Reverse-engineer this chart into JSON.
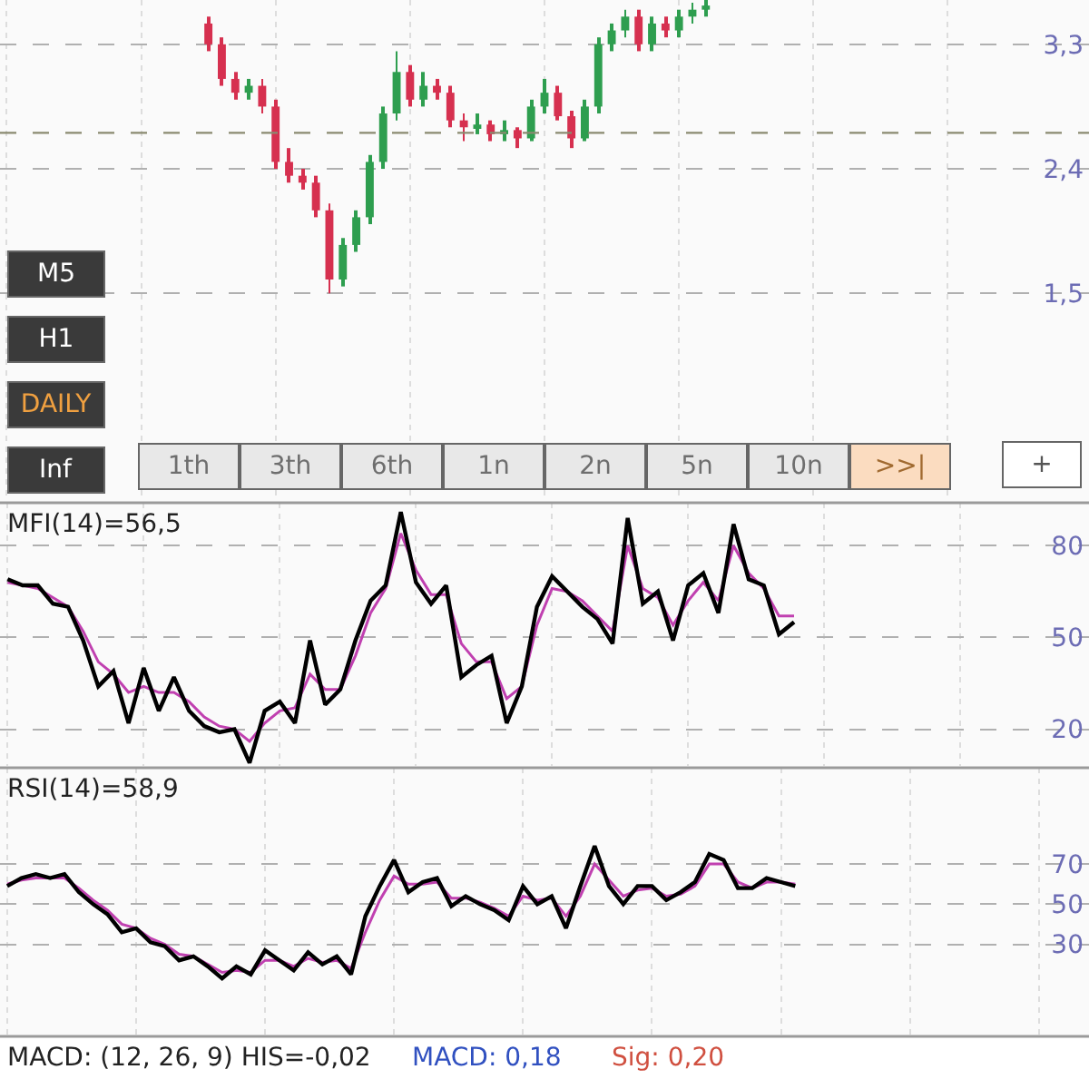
{
  "chart_data": [
    {
      "type": "candlestick",
      "categories": [
        null,
        null,
        null,
        null,
        null,
        null,
        null,
        null,
        null,
        null,
        null,
        null,
        null,
        null,
        null,
        null,
        null,
        null,
        null,
        null,
        null,
        null,
        null,
        null,
        null,
        null,
        null,
        null,
        null,
        null,
        null,
        null,
        null,
        null,
        null,
        null,
        null,
        null,
        null,
        null,
        null,
        null,
        null,
        null,
        null,
        null,
        null,
        null,
        null,
        null,
        null,
        null,
        null,
        null,
        null,
        null,
        null,
        null,
        null,
        null,
        null,
        null,
        null,
        null,
        null,
        null,
        null,
        null,
        null,
        null,
        null,
        null,
        null,
        null,
        null,
        null,
        null,
        null,
        null,
        null,
        null
      ],
      "ohlc": [
        null,
        null,
        null,
        null,
        null,
        null,
        null,
        null,
        null,
        null,
        null,
        null,
        null,
        null,
        null,
        [
          3.45,
          3.5,
          3.25,
          3.3
        ],
        [
          3.3,
          3.35,
          3.0,
          3.05
        ],
        [
          3.05,
          3.1,
          2.9,
          2.95
        ],
        [
          2.95,
          3.05,
          2.9,
          3.0
        ],
        [
          3.0,
          3.05,
          2.8,
          2.85
        ],
        [
          2.85,
          2.9,
          2.4,
          2.45
        ],
        [
          2.45,
          2.55,
          2.3,
          2.35
        ],
        [
          2.35,
          2.4,
          2.25,
          2.3
        ],
        [
          2.3,
          2.35,
          2.05,
          2.1
        ],
        [
          2.1,
          2.15,
          1.5,
          1.6
        ],
        [
          1.6,
          1.9,
          1.55,
          1.85
        ],
        [
          1.85,
          2.1,
          1.8,
          2.05
        ],
        [
          2.05,
          2.5,
          2.0,
          2.45
        ],
        [
          2.45,
          2.85,
          2.4,
          2.8
        ],
        [
          2.8,
          3.25,
          2.75,
          3.1
        ],
        [
          3.1,
          3.15,
          2.85,
          2.9
        ],
        [
          2.9,
          3.1,
          2.85,
          3.0
        ],
        [
          3.0,
          3.05,
          2.9,
          2.95
        ],
        [
          2.95,
          3.0,
          2.7,
          2.75
        ],
        [
          2.75,
          2.8,
          2.6,
          2.7
        ],
        [
          2.7,
          2.8,
          2.65,
          2.72
        ],
        [
          2.72,
          2.75,
          2.6,
          2.65
        ],
        [
          2.65,
          2.75,
          2.6,
          2.68
        ],
        [
          2.68,
          2.7,
          2.55,
          2.62
        ],
        [
          2.62,
          2.9,
          2.6,
          2.85
        ],
        [
          2.85,
          3.05,
          2.8,
          2.95
        ],
        [
          2.95,
          3.0,
          2.75,
          2.78
        ],
        [
          2.78,
          2.82,
          2.55,
          2.62
        ],
        [
          2.62,
          2.9,
          2.6,
          2.85
        ],
        [
          2.85,
          3.35,
          2.8,
          3.3
        ],
        [
          3.3,
          3.45,
          3.25,
          3.4
        ],
        [
          3.4,
          3.55,
          3.35,
          3.5
        ],
        [
          3.5,
          3.55,
          3.25,
          3.3
        ],
        [
          3.3,
          3.5,
          3.25,
          3.45
        ],
        [
          3.45,
          3.5,
          3.35,
          3.4
        ],
        [
          3.4,
          3.55,
          3.35,
          3.5
        ],
        [
          3.5,
          3.6,
          3.45,
          3.55
        ],
        [
          3.55,
          3.62,
          3.5,
          3.58
        ],
        null,
        null,
        null,
        null,
        null,
        null,
        null,
        null,
        null,
        null,
        null,
        null,
        null,
        null,
        null,
        null,
        null,
        null,
        null,
        null,
        null,
        null,
        null,
        null,
        null,
        null,
        null,
        null
      ],
      "ylim": [
        0,
        3.62
      ],
      "yticks": [
        {
          "value": 1.5,
          "label": "1,5"
        },
        {
          "value": 2.4,
          "label": "2,4"
        },
        {
          "value": 3.3,
          "label": "3,3"
        }
      ],
      "ref_lines": [
        {
          "axis": "y",
          "value": 2.66,
          "color": "#8a8a70",
          "line_style": "dashed"
        }
      ],
      "grid": true,
      "annotations": [
        "M5",
        "H1",
        "DAILY",
        "Inf",
        "1th",
        "3th",
        "6th",
        "1n",
        "2n",
        "5n",
        "10n",
        ">>|",
        "+"
      ]
    },
    {
      "type": "line",
      "title": "MFI(14)=56,5",
      "categories": [
        null,
        null,
        null,
        null,
        null,
        null,
        null,
        null,
        null,
        null,
        null,
        null,
        null,
        null,
        null,
        null,
        null,
        null,
        null,
        null,
        null,
        null,
        null,
        null,
        null,
        null,
        null,
        null,
        null,
        null,
        null,
        null,
        null,
        null,
        null,
        null,
        null,
        null,
        null,
        null,
        null,
        null,
        null,
        null,
        null,
        null,
        null,
        null,
        null,
        null,
        null,
        null,
        null,
        null,
        null,
        null,
        null,
        null,
        null,
        null,
        null,
        null,
        null,
        null,
        null,
        null,
        null,
        null,
        null,
        null,
        null,
        null
      ],
      "series": [
        {
          "color": "#c040b0",
          "values": [
            68,
            67,
            66,
            63,
            60,
            52,
            42,
            38,
            32,
            34,
            32,
            32,
            29,
            24,
            21,
            20,
            16,
            22,
            26,
            27,
            38,
            33,
            33,
            44,
            58,
            66,
            84,
            72,
            64,
            64,
            48,
            42,
            42,
            30,
            34,
            54,
            66,
            65,
            62,
            57,
            52,
            80,
            66,
            63,
            54,
            62,
            68,
            62,
            80,
            71,
            66,
            57,
            57,
            null,
            null,
            null,
            null,
            null,
            null,
            null,
            null,
            null,
            null,
            null,
            null,
            null,
            null,
            null,
            null,
            null,
            null,
            null
          ]
        },
        {
          "color": "#000000",
          "values": [
            69,
            67,
            67,
            61,
            60,
            49,
            34,
            39,
            22,
            40,
            26,
            37,
            26,
            21,
            19,
            20,
            9,
            26,
            29,
            22,
            49,
            28,
            33,
            49,
            62,
            67,
            91,
            68,
            61,
            67,
            37,
            41,
            44,
            22,
            34,
            60,
            70,
            65,
            60,
            56,
            48,
            89,
            61,
            65,
            49,
            67,
            71,
            58,
            87,
            69,
            67,
            51,
            55,
            null,
            null,
            null,
            null,
            null,
            null,
            null,
            null,
            null,
            null,
            null,
            null,
            null,
            null,
            null,
            null,
            null,
            null,
            null
          ]
        }
      ],
      "ylim": [
        8,
        94
      ],
      "yticks": [
        20,
        50,
        80
      ],
      "grid": true
    },
    {
      "type": "line",
      "title": "RSI(14)=58,9",
      "categories": [
        null,
        null,
        null,
        null,
        null,
        null,
        null,
        null,
        null,
        null,
        null,
        null,
        null,
        null,
        null,
        null,
        null,
        null,
        null,
        null,
        null,
        null,
        null,
        null,
        null,
        null,
        null,
        null,
        null,
        null,
        null,
        null,
        null,
        null,
        null,
        null,
        null,
        null,
        null,
        null,
        null,
        null,
        null,
        null,
        null,
        null,
        null,
        null,
        null,
        null,
        null,
        null,
        null,
        null,
        null,
        null,
        null,
        null,
        null,
        null,
        null,
        null,
        null,
        null,
        null,
        null,
        null,
        null,
        null,
        null,
        null,
        null,
        null,
        null,
        null,
        null
      ],
      "series": [
        {
          "color": "#c040b0",
          "values": [
            60,
            62,
            63,
            63,
            63,
            58,
            52,
            47,
            40,
            38,
            33,
            30,
            25,
            24,
            20,
            16,
            17,
            16,
            22,
            22,
            19,
            23,
            21,
            22,
            18,
            36,
            52,
            64,
            60,
            60,
            61,
            53,
            53,
            51,
            48,
            44,
            54,
            52,
            53,
            44,
            54,
            70,
            62,
            54,
            57,
            58,
            54,
            55,
            59,
            70,
            70,
            61,
            58,
            61,
            61,
            60,
            null,
            null,
            null,
            null,
            null,
            null,
            null,
            null,
            null,
            null,
            null,
            null,
            null,
            null,
            null,
            null,
            null,
            null,
            null,
            null
          ]
        },
        {
          "color": "#000000",
          "values": [
            59,
            63,
            65,
            63,
            65,
            56,
            50,
            45,
            36,
            38,
            31,
            29,
            22,
            24,
            19,
            13,
            19,
            15,
            27,
            22,
            17,
            26,
            20,
            24,
            15,
            44,
            59,
            72,
            56,
            61,
            63,
            49,
            54,
            50,
            47,
            42,
            59,
            50,
            54,
            38,
            59,
            79,
            59,
            50,
            59,
            59,
            52,
            56,
            61,
            75,
            72,
            58,
            58,
            63,
            61,
            59,
            null,
            null,
            null,
            null,
            null,
            null,
            null,
            null,
            null,
            null,
            null,
            null,
            null,
            null,
            null,
            null,
            null,
            null,
            null,
            null
          ]
        }
      ],
      "ylim": [
        -15,
        118
      ],
      "yticks": [
        30,
        50,
        70
      ],
      "grid": true
    },
    {
      "type": "other",
      "title": "MACD: (12, 26, 9) HIS=-0,02",
      "annotations": [
        "MACD: 0,18",
        "Sig: 0,20"
      ]
    }
  ]
}
